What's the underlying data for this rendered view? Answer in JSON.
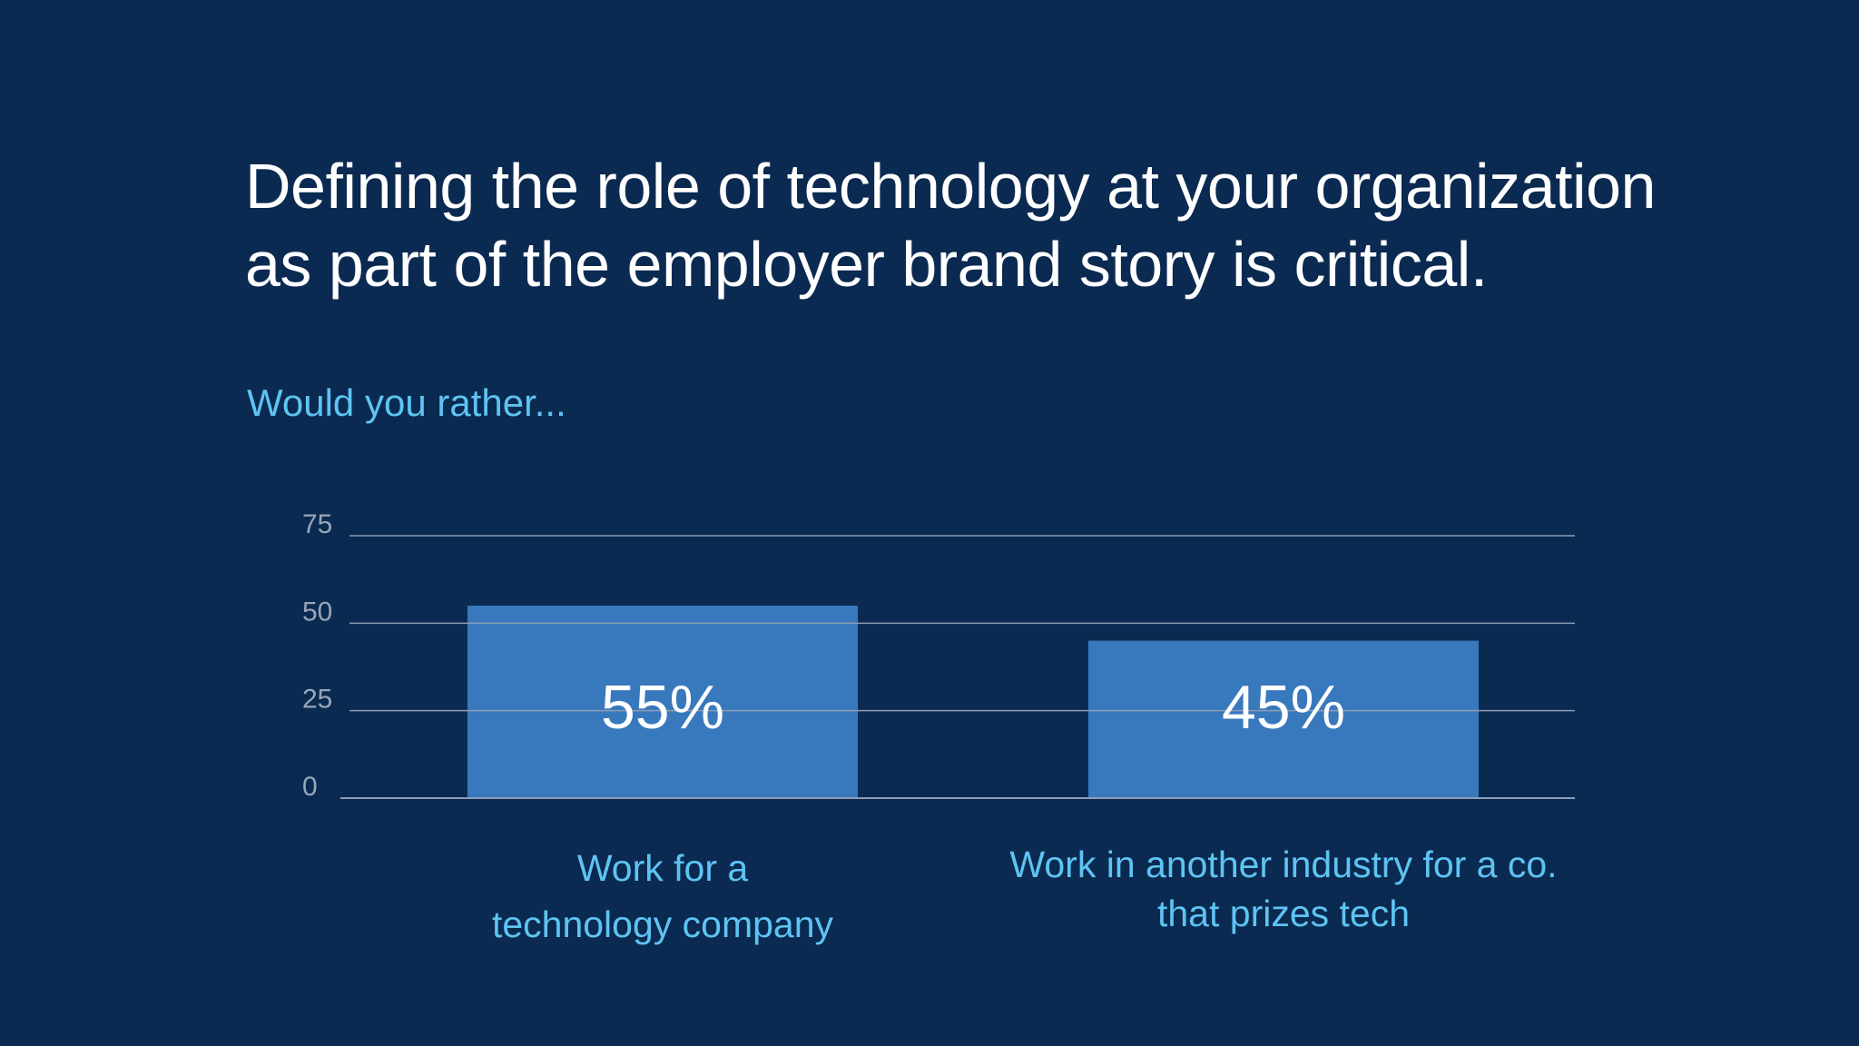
{
  "headline": {
    "line1": "Defining the role of technology at your organization",
    "line2": "as part of the employer brand story is critical."
  },
  "subtitle": "Would you rather...",
  "colors": {
    "background": "#0b2a51",
    "bar": "#3878bd",
    "accent_text": "#5ec4f2",
    "gridline": "#8c9db5",
    "tick_text": "#98a6ba"
  },
  "chart_data": {
    "type": "bar",
    "categories": [
      [
        "Work for a",
        "technology company"
      ],
      [
        "Work in another industry for a co.",
        "that prizes tech"
      ]
    ],
    "values": [
      55,
      45
    ],
    "data_labels": [
      "55%",
      "45%"
    ],
    "yticks": [
      0,
      25,
      50,
      75
    ],
    "ylim": [
      0,
      75
    ],
    "grid": true,
    "legend": "none"
  }
}
